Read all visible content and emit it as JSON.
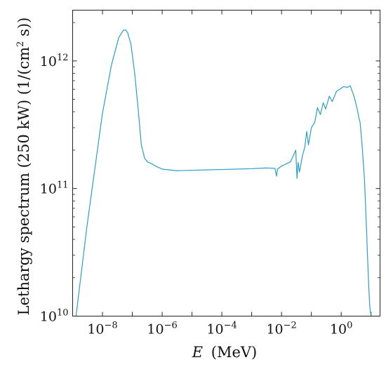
{
  "chart_data": {
    "type": "line",
    "xlabel": {
      "var": "E",
      "unit": "(MeV)"
    },
    "ylabel": {
      "text": "Lethargy spectrum (250 kW) (1/(cm",
      "sup": "2",
      "end": " s))"
    },
    "x_scale": "log",
    "y_scale": "log",
    "xlim": [
      1e-09,
      20
    ],
    "ylim": [
      10000000000.0,
      2500000000000.0
    ],
    "x_ticks": [
      {
        "base": "10",
        "exp": "−8",
        "value": 1e-08
      },
      {
        "base": "10",
        "exp": "−6",
        "value": 1e-06
      },
      {
        "base": "10",
        "exp": "−4",
        "value": 0.0001
      },
      {
        "base": "10",
        "exp": "−2",
        "value": 0.01
      },
      {
        "base": "10",
        "exp": "0",
        "value": 1
      }
    ],
    "y_ticks": [
      {
        "base": "10",
        "exp": "10",
        "value": 10000000000.0
      },
      {
        "base": "10",
        "exp": "11",
        "value": 100000000000.0
      },
      {
        "base": "10",
        "exp": "12",
        "value": 1000000000000.0
      }
    ],
    "grid": false,
    "series_color": "#2a9fc9",
    "x": [
      1.3e-09,
      3e-09,
      1e-08,
      2e-08,
      3.5e-08,
      5e-08,
      6e-08,
      7e-08,
      9e-08,
      1.2e-07,
      1.6e-07,
      2e-07,
      2.6e-07,
      3.3e-07,
      4.3e-07,
      6e-07,
      1e-06,
      3e-06,
      1e-05,
      3e-05,
      0.0001,
      0.0003,
      0.001,
      0.003,
      0.006,
      0.0068,
      0.0073,
      0.01,
      0.02,
      0.03,
      0.033,
      0.036,
      0.04,
      0.05,
      0.06,
      0.07,
      0.08,
      0.1,
      0.13,
      0.16,
      0.2,
      0.25,
      0.3,
      0.4,
      0.5,
      0.7,
      1,
      1.2,
      1.6,
      2,
      2.6,
      3,
      3.5,
      4,
      4.3,
      5,
      6,
      7,
      8,
      9,
      10
    ],
    "y": [
      10000000000.0,
      50000000000.0,
      390000000000.0,
      930000000000.0,
      1520000000000.0,
      1740000000000.0,
      1750000000000.0,
      1660000000000.0,
      1350000000000.0,
      800000000000.0,
      400000000000.0,
      220000000000.0,
      172000000000.0,
      161000000000.0,
      157000000000.0,
      150000000000.0,
      142000000000.0,
      138000000000.0,
      139000000000.0,
      140000000000.0,
      141000000000.0,
      142000000000.0,
      143000000000.0,
      145000000000.0,
      144000000000.0,
      125000000000.0,
      142000000000.0,
      150000000000.0,
      162000000000.0,
      200000000000.0,
      120000000000.0,
      160000000000.0,
      135000000000.0,
      180000000000.0,
      210000000000.0,
      280000000000.0,
      220000000000.0,
      300000000000.0,
      330000000000.0,
      430000000000.0,
      380000000000.0,
      470000000000.0,
      420000000000.0,
      530000000000.0,
      480000000000.0,
      580000000000.0,
      610000000000.0,
      630000000000.0,
      620000000000.0,
      640000000000.0,
      540000000000.0,
      480000000000.0,
      410000000000.0,
      350000000000.0,
      330000000000.0,
      220000000000.0,
      120000000000.0,
      50000000000.0,
      22000000000.0,
      12000000000.0,
      10000000000.0
    ]
  }
}
